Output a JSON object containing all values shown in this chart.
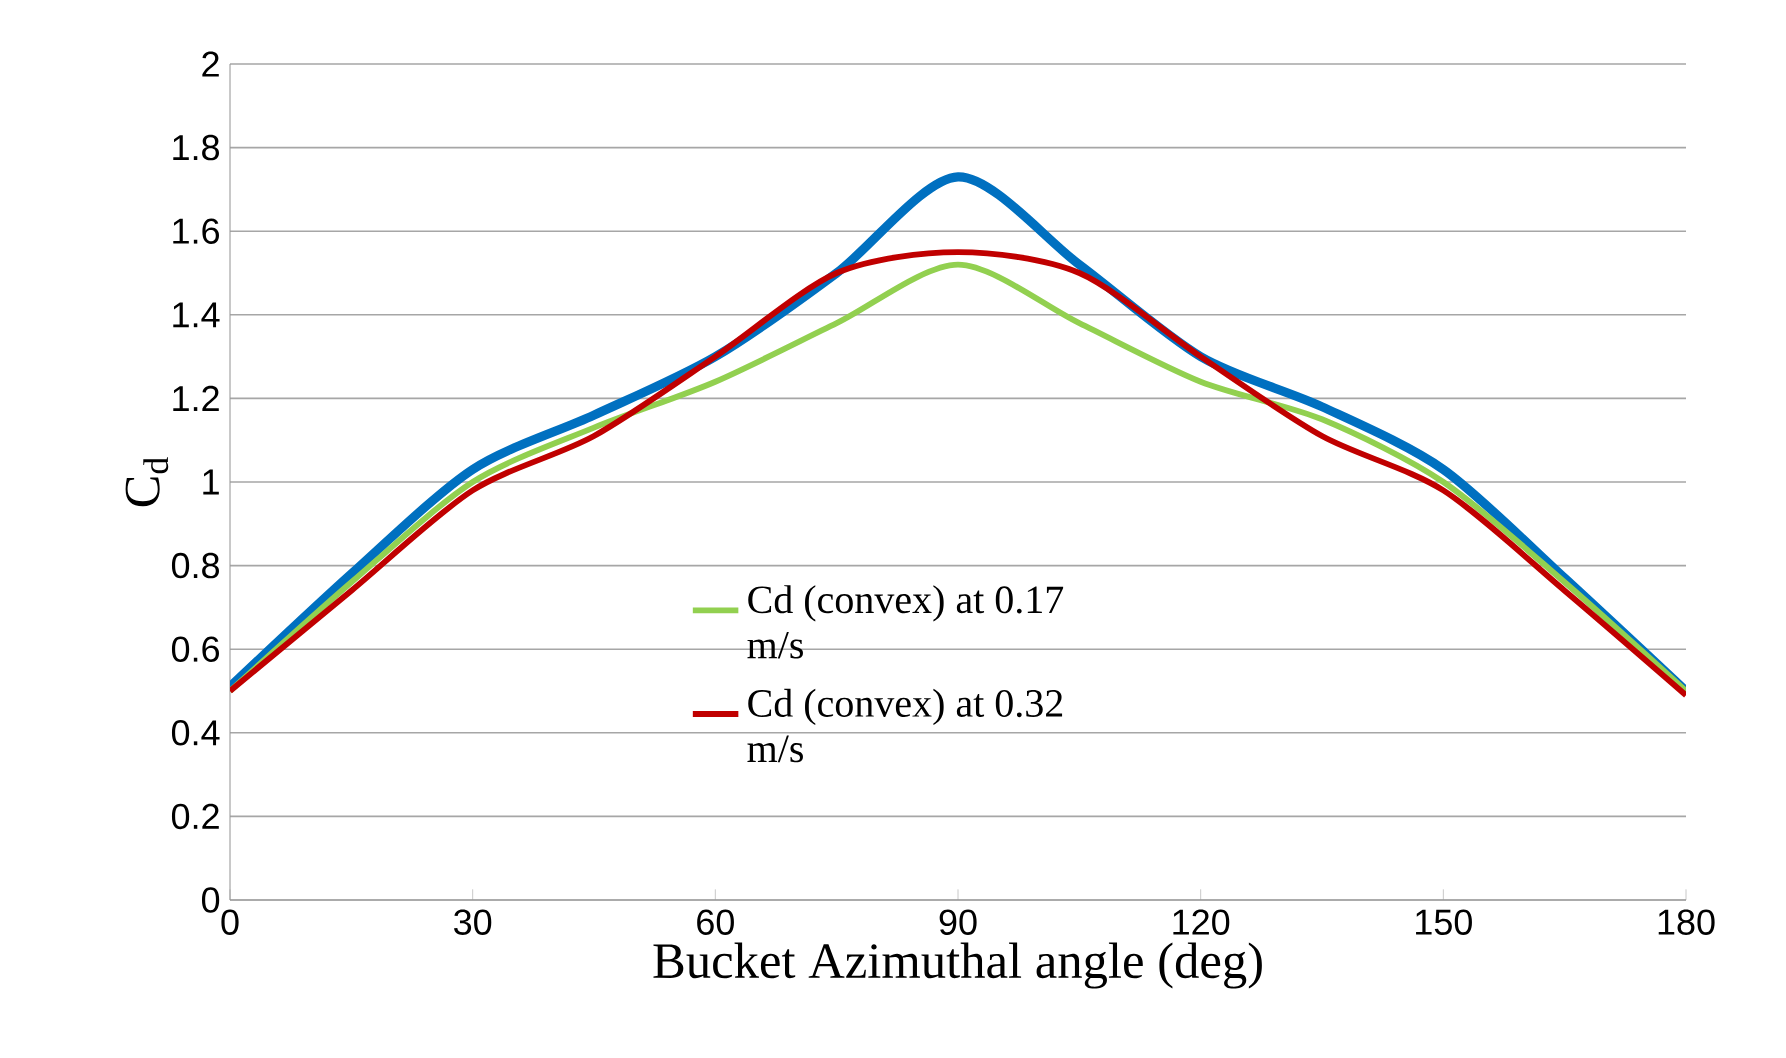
{
  "chart_data": {
    "type": "line",
    "xlabel": "Bucket Azimuthal angle (deg)",
    "ylabel": "C$_{d}$",
    "x": [
      0,
      15,
      30,
      45,
      60,
      75,
      90,
      105,
      120,
      135,
      150,
      165,
      180
    ],
    "series": [
      {
        "color": "#0070c0",
        "values": [
          0.51,
          0.78,
          1.03,
          1.16,
          1.3,
          1.5,
          1.73,
          1.52,
          1.3,
          1.18,
          1.03,
          0.77,
          0.5
        ]
      },
      {
        "name": "Cd (convex) at 0.17 m/s",
        "color": "#92d050",
        "values": [
          0.5,
          0.76,
          1.0,
          1.13,
          1.24,
          1.38,
          1.52,
          1.38,
          1.24,
          1.15,
          1.0,
          0.76,
          0.5
        ]
      },
      {
        "name": "Cd (convex) at 0.32 m/s",
        "color": "#c00000",
        "values": [
          0.5,
          0.74,
          0.98,
          1.11,
          1.3,
          1.5,
          1.55,
          1.5,
          1.3,
          1.11,
          0.98,
          0.74,
          0.49
        ]
      }
    ],
    "xlim": [
      0,
      180
    ],
    "xticks": [
      0,
      30,
      60,
      90,
      120,
      150,
      180
    ],
    "ylim": [
      0,
      2
    ],
    "yticks": [
      0,
      0.2,
      0.4,
      0.6,
      0.8,
      1,
      1.2,
      1.4,
      1.6,
      1.8,
      2
    ],
    "grid": "y",
    "legend": "center",
    "marker": "none",
    "line_style": "solid"
  }
}
